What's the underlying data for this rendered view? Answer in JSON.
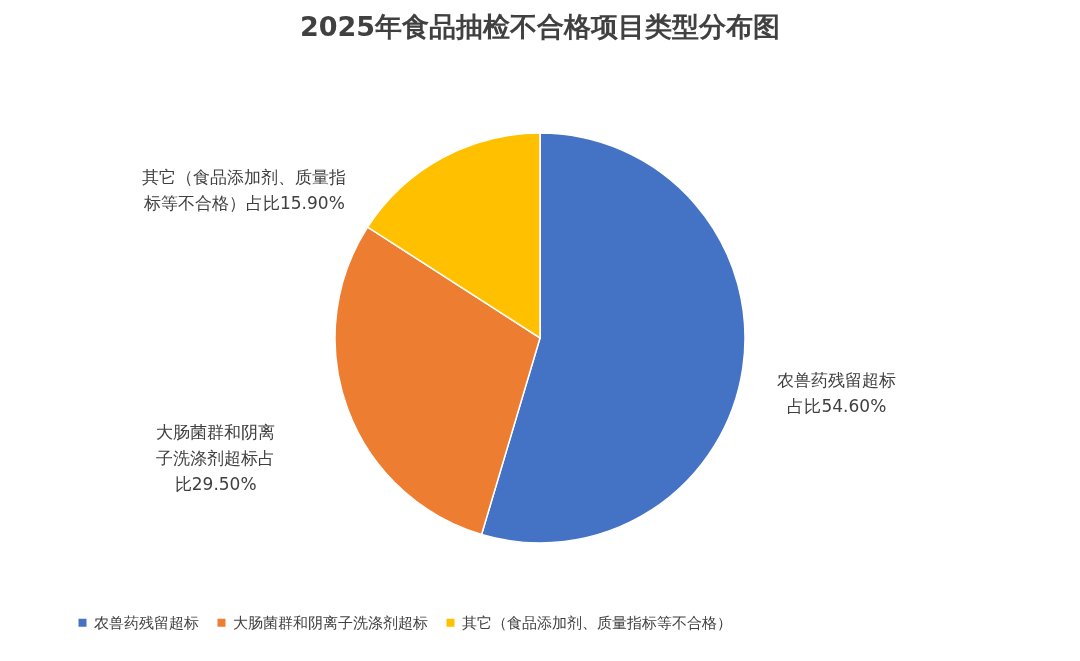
{
  "chart_data": {
    "type": "pie",
    "title": "2025年食品抽检不合格项目类型分布图",
    "categories": [
      "农兽药残留超标",
      "大肠菌群和阴离子洗涤剂超标",
      "其它（食品添加剂、质量指标等不合格）"
    ],
    "values": [
      54.6,
      29.5,
      15.9
    ],
    "colors": [
      "#4472c4",
      "#ed7d31",
      "#ffc000"
    ],
    "value_labels": [
      "农兽药残留超标占比54.60%",
      "大肠菌群和阴离子洗涤剂超标占比29.50%",
      "其它（食品添加剂、质量指标等不合格）占比15.90%"
    ],
    "legend": "bottom"
  }
}
